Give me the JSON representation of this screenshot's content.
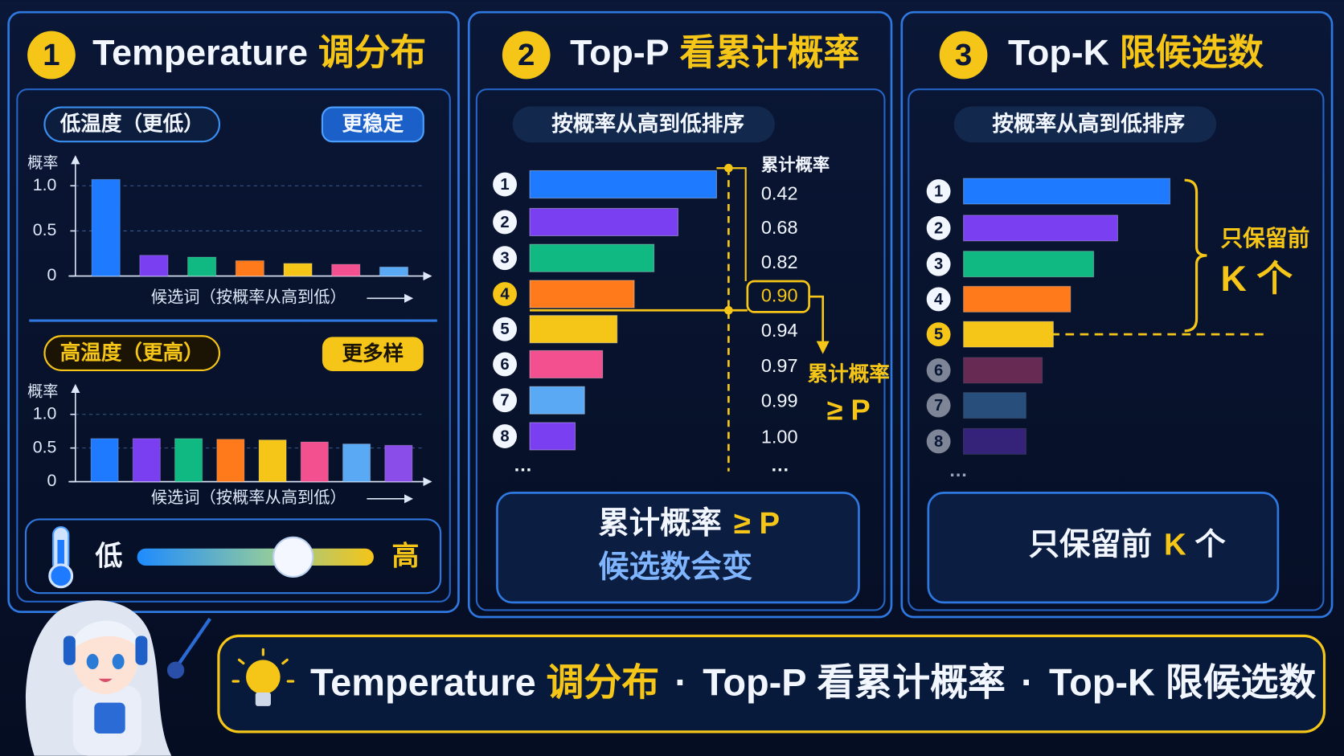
{
  "panels": [
    {
      "number": "1",
      "title": "Temperature",
      "title_highlight": "调分布",
      "low": {
        "label": "低温度（更低）",
        "badge": "更稳定",
        "y_label": "概率",
        "ylim": [
          0,
          1.3
        ],
        "yticks": [
          0,
          0.5,
          {
            "value": 1,
            "label": "1.0"
          }
        ],
        "values": [
          1.07,
          0.23,
          0.21,
          0.17,
          0.14,
          0.13,
          0.1
        ],
        "colors": [
          "#1e7bff",
          "#7b3ff2",
          "#10b981",
          "#ff7a1a",
          "#f5c518",
          "#f2508f",
          "#5aa9f5"
        ],
        "x_label": "候选词（按概率从高到低）"
      },
      "high": {
        "label": "高温度（更高）",
        "badge": "更多样",
        "y_label": "概率",
        "ylim": [
          0,
          1.4
        ],
        "yticks": [
          0,
          0.5,
          {
            "value": 1,
            "label": "1.0"
          }
        ],
        "values": [
          0.64,
          0.64,
          0.64,
          0.63,
          0.62,
          0.59,
          0.56,
          0.54
        ],
        "colors": [
          "#1e7bff",
          "#7b3ff2",
          "#10b981",
          "#ff7a1a",
          "#f5c518",
          "#f2508f",
          "#5aa9f5",
          "#8a4dea"
        ],
        "x_label": "候选词（按概率从高到低）"
      },
      "slider": {
        "min_label": "低",
        "max_label": "高"
      }
    },
    {
      "number": "2",
      "title": "Top-P",
      "title_highlight": "看累计概率",
      "header": "按概率从高到低排序",
      "ranks": [
        "1",
        "2",
        "3",
        "4",
        "5",
        "6",
        "7",
        "8"
      ],
      "cumulative_label": "累计概率",
      "cumulative": [
        "0.42",
        "0.68",
        "0.82",
        "0.90",
        "0.94",
        "0.97",
        "0.99",
        "1.00"
      ],
      "more": "…",
      "more_right": "…",
      "rule": [
        "累计概率",
        "≥ P"
      ],
      "summary": {
        "line1": "累计概率",
        "line1_highlight": "≥ P",
        "line2": "候选数会变"
      }
    },
    {
      "number": "3",
      "title": "Top-K",
      "title_highlight": "限候选数",
      "header": "按概率从高到低排序",
      "ranks": [
        "1",
        "2",
        "3",
        "4",
        "5",
        "6",
        "7",
        "8"
      ],
      "more": "…",
      "rule": [
        "只保留前",
        "K 个"
      ],
      "summary": {
        "before": "只保留前",
        "highlight": "K",
        "after": "个"
      }
    }
  ],
  "footer": [
    "Temperature",
    "调分布",
    "·",
    "Top-P",
    "看累计概率",
    "·",
    "Top-K",
    "限候选数"
  ]
}
